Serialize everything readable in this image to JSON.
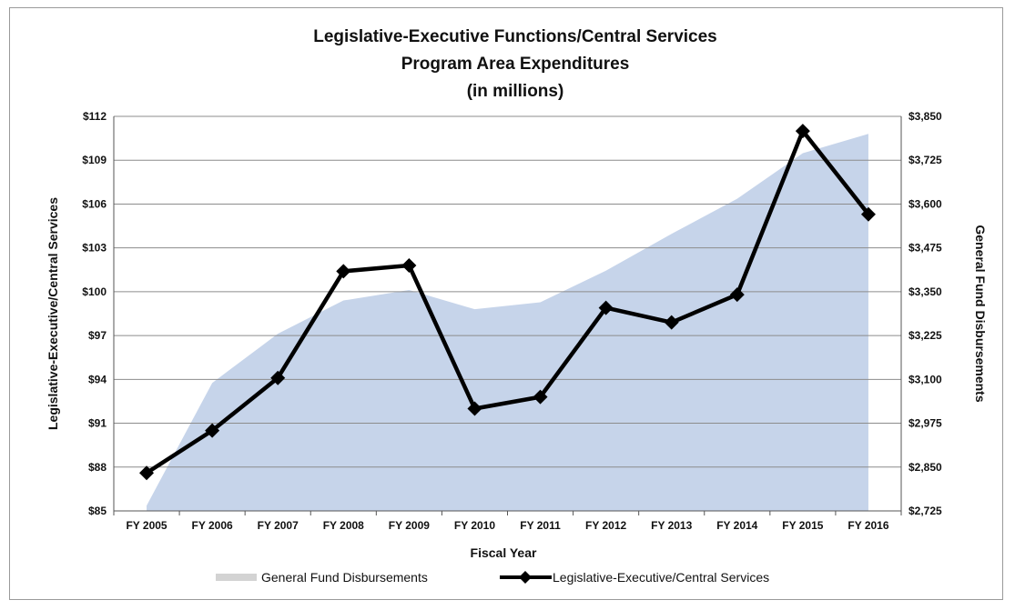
{
  "chart_data": {
    "type": "line",
    "title": [
      "Legislative-Executive Functions/Central Services",
      "Program Area Expenditures",
      "(in millions)"
    ],
    "xlabel": "Fiscal Year",
    "ylabel": "Legislative-Executive/Central Services",
    "y2label": "General Fund Disbursements",
    "categories": [
      "FY 2005",
      "FY 2006",
      "FY 2007",
      "FY 2008",
      "FY 2009",
      "FY 2010",
      "FY 2011",
      "FY 2012",
      "FY 2013",
      "FY 2014",
      "FY 2015",
      "FY 2016"
    ],
    "ylim": [
      85,
      112
    ],
    "yticks": [
      85,
      88,
      91,
      94,
      97,
      100,
      103,
      106,
      109,
      112
    ],
    "ytick_labels": [
      "$85",
      "$88",
      "$91",
      "$94",
      "$97",
      "$100",
      "$103",
      "$106",
      "$109",
      "$112"
    ],
    "y2lim": [
      2725,
      3850
    ],
    "y2ticks": [
      2725,
      2850,
      2975,
      3100,
      3225,
      3350,
      3475,
      3600,
      3725,
      3850
    ],
    "y2tick_labels": [
      "$2,725",
      "$2,850",
      "$2,975",
      "$3,100",
      "$3,225",
      "$3,350",
      "$3,475",
      "$3,600",
      "$3,725",
      "$3,850"
    ],
    "grid": true,
    "legend_position": "bottom",
    "series": [
      {
        "name": "General Fund Disbursements",
        "type": "area",
        "axis": "right",
        "color": "#c6d4ea",
        "values": [
          2740,
          3090,
          3230,
          3325,
          3355,
          3300,
          3320,
          3410,
          3515,
          3615,
          3745,
          3800
        ]
      },
      {
        "name": "Legislative-Executive/Central Services",
        "type": "line",
        "axis": "left",
        "color": "#000000",
        "marker": "diamond",
        "values": [
          87.6,
          90.5,
          94.1,
          101.4,
          101.8,
          92.0,
          92.8,
          98.9,
          97.9,
          99.8,
          111.0,
          105.3
        ]
      }
    ]
  }
}
